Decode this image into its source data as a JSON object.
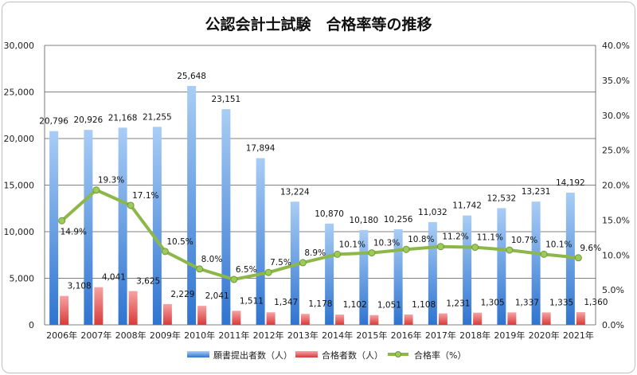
{
  "chart_data": {
    "type": "bar",
    "title": "公認会計士試験　合格率等の推移",
    "categories": [
      "2006年",
      "2007年",
      "2008年",
      "2009年",
      "2010年",
      "2011年",
      "2012年",
      "2013年",
      "2014年",
      "2015年",
      "2016年",
      "2017年",
      "2018年",
      "2019年",
      "2020年",
      "2021年"
    ],
    "series": [
      {
        "name": "願書提出者数（人）",
        "type": "bar",
        "axis": "left",
        "color": "#5b9bd5",
        "values": [
          20796,
          20926,
          21168,
          21255,
          25648,
          23151,
          17894,
          13224,
          10870,
          10180,
          10256,
          11032,
          11742,
          12532,
          13231,
          14192
        ],
        "labels": [
          "20,796",
          "20,926",
          "21,168",
          "21,255",
          "25,648",
          "23,151",
          "17,894",
          "13,224",
          "10,870",
          "10,180",
          "10,256",
          "11,032",
          "11,742",
          "12,532",
          "13,231",
          "14,192"
        ]
      },
      {
        "name": "合格者数（人）",
        "type": "bar",
        "axis": "left",
        "color": "#e05a5a",
        "values": [
          3108,
          4041,
          3625,
          2229,
          2041,
          1511,
          1347,
          1178,
          1102,
          1051,
          1108,
          1231,
          1305,
          1337,
          1335,
          1360
        ],
        "labels": [
          "3,108",
          "4,041",
          "3,625",
          "2,229",
          "2,041",
          "1,511",
          "1,347",
          "1,178",
          "1,102",
          "1,051",
          "1,108",
          "1,231",
          "1,305",
          "1,337",
          "1,335",
          "1,360"
        ]
      },
      {
        "name": "合格率（%）",
        "type": "line",
        "axis": "right",
        "color": "#8db74a",
        "values": [
          14.9,
          19.3,
          17.1,
          10.5,
          8.0,
          6.5,
          7.5,
          8.9,
          10.1,
          10.3,
          10.8,
          11.2,
          11.1,
          10.7,
          10.1,
          9.6
        ],
        "labels": [
          "14.9%",
          "19.3%",
          "17.1%",
          "10.5%",
          "8.0%",
          "6.5%",
          "7.5%",
          "8.9%",
          "10.1%",
          "10.3%",
          "10.8%",
          "11.2%",
          "11.1%",
          "10.7%",
          "10.1%",
          "9.6%"
        ]
      }
    ],
    "y_left": {
      "min": 0,
      "max": 30000,
      "ticks": [
        "0",
        "5,000",
        "10,000",
        "15,000",
        "20,000",
        "25,000",
        "30,000"
      ]
    },
    "y_right": {
      "min": 0,
      "max": 40,
      "ticks": [
        "0.0%",
        "5.0%",
        "10.0%",
        "15.0%",
        "20.0%",
        "25.0%",
        "30.0%",
        "35.0%",
        "40.0%"
      ]
    },
    "grid": true,
    "legend_position": "bottom"
  }
}
